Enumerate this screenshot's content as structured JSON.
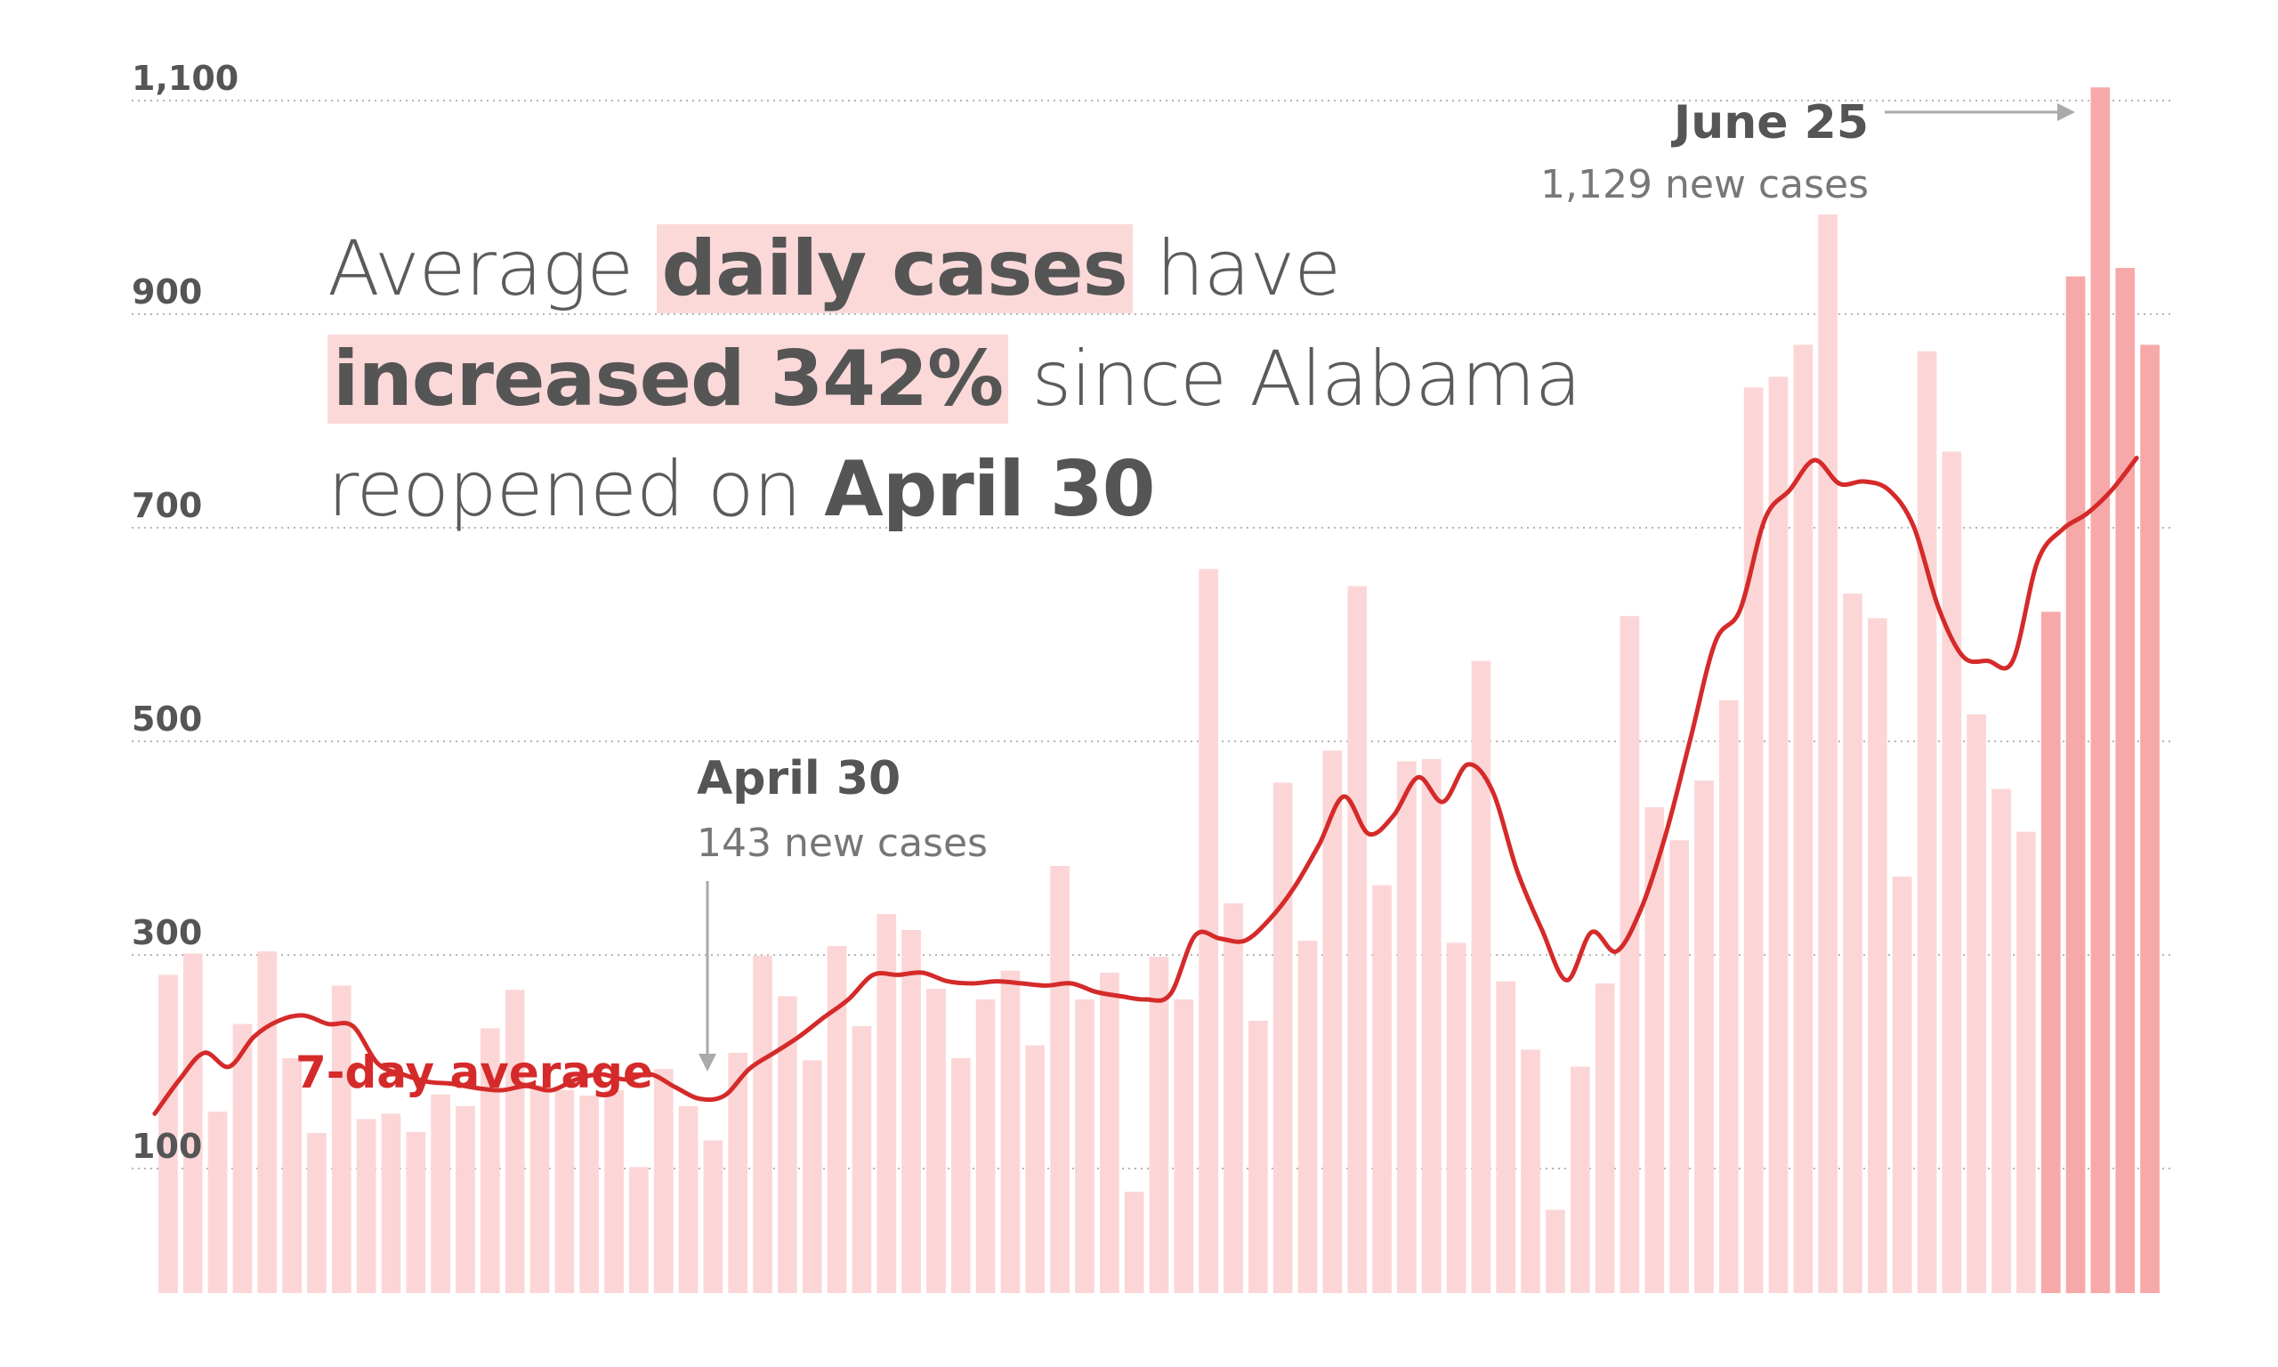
{
  "headline": {
    "part1": "Average ",
    "hl1": "daily cases",
    "part2": " have",
    "hl2": "increased 342%",
    "part3": " since Alabama",
    "part4": "reopened on ",
    "bold3": "April 30"
  },
  "annotations": {
    "april30": {
      "title": "April 30",
      "subtitle": "143 new cases"
    },
    "june25": {
      "title": "June 25",
      "subtitle": "1,129 new cases"
    },
    "average_label": "7-day average"
  },
  "colors": {
    "bar_light": "#fcd6d6",
    "bar_recent": "#f7a9a9",
    "line": "#d52a2a",
    "text": "#555555",
    "highlight": "#fcd9d9"
  },
  "chart_data": {
    "type": "bar",
    "title": "",
    "xlabel": "",
    "ylabel": "",
    "ylim": [
      0,
      1129
    ],
    "yticks": [
      100,
      300,
      500,
      700,
      900,
      1100
    ],
    "ytick_labels": [
      "100",
      "300",
      "500",
      "700",
      "900",
      "1,100"
    ],
    "grid": true,
    "recent_bars_from_index": 76,
    "series": [
      {
        "name": "Daily new cases",
        "values": [
          298,
          318,
          170,
          252,
          320,
          220,
          150,
          288,
          163,
          168,
          151,
          186,
          175,
          248,
          284,
          195,
          190,
          185,
          190,
          118,
          210,
          175,
          143,
          225,
          316,
          278,
          218,
          325,
          250,
          355,
          340,
          285,
          220,
          275,
          302,
          232,
          400,
          275,
          300,
          95,
          315,
          275,
          678,
          365,
          255,
          478,
          330,
          508,
          662,
          382,
          498,
          500,
          328,
          592,
          292,
          228,
          78,
          212,
          290,
          634,
          455,
          424,
          480,
          555,
          848,
          858,
          888,
          1010,
          655,
          632,
          390,
          882,
          788,
          542,
          472,
          432,
          638,
          952,
          1129,
          960,
          888
        ]
      },
      {
        "name": "7-day average",
        "values": [
          168,
          200,
          225,
          212,
          240,
          255,
          260,
          252,
          250,
          215,
          205,
          198,
          196,
          192,
          190,
          194,
          190,
          200,
          205,
          200,
          205,
          193,
          182,
          185,
          210,
          225,
          240,
          258,
          275,
          298,
          298,
          300,
          292,
          290,
          292,
          290,
          288,
          290,
          282,
          278,
          275,
          280,
          335,
          332,
          330,
          350,
          380,
          420,
          465,
          430,
          447,
          483,
          460,
          495,
          470,
          395,
          340,
          293,
          338,
          320,
          360,
          430,
          520,
          610,
          640,
          725,
          752,
          780,
          758,
          760,
          752,
          718,
          642,
          596,
          592,
          592,
          685,
          715,
          730,
          752,
          782
        ]
      }
    ]
  }
}
